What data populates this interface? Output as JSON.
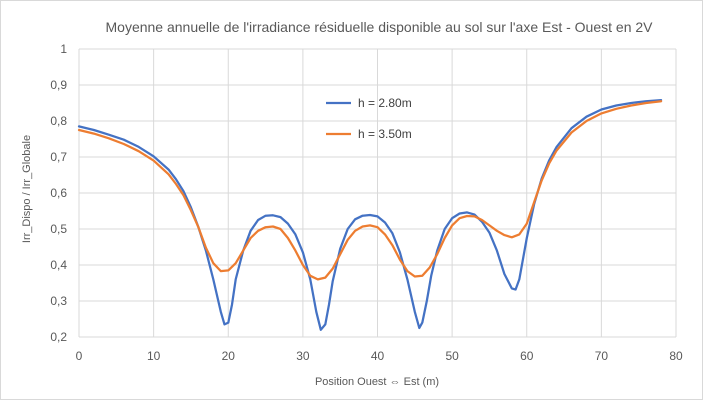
{
  "chart_data": {
    "type": "line",
    "title": "Moyenne annuelle de l'irradiance résiduelle disponible au sol sur l'axe Est - Ouest en 2V",
    "xlabel": "Position Ouest ⇔ Est (m)",
    "ylabel": "Irr_Dispo / Irr_Globale",
    "xlim": [
      0,
      80
    ],
    "ylim": [
      0.2,
      1.0
    ],
    "x_ticks": [
      "0",
      "10",
      "20",
      "30",
      "40",
      "50",
      "60",
      "70",
      "80"
    ],
    "y_ticks": [
      "0,2",
      "0,3",
      "0,4",
      "0,5",
      "0,6",
      "0,7",
      "0,8",
      "0,9",
      "1"
    ],
    "grid": true,
    "legend_position": "inside-top-center",
    "series": [
      {
        "name": "h = 2.80m",
        "color": "#4472c4",
        "points": [
          [
            0,
            0.785
          ],
          [
            2,
            0.775
          ],
          [
            4,
            0.762
          ],
          [
            6,
            0.748
          ],
          [
            8,
            0.728
          ],
          [
            10,
            0.702
          ],
          [
            12,
            0.665
          ],
          [
            13,
            0.638
          ],
          [
            14,
            0.605
          ],
          [
            15,
            0.56
          ],
          [
            16,
            0.505
          ],
          [
            17,
            0.44
          ],
          [
            18,
            0.36
          ],
          [
            19,
            0.27
          ],
          [
            19.5,
            0.235
          ],
          [
            20,
            0.24
          ],
          [
            20.5,
            0.29
          ],
          [
            21,
            0.36
          ],
          [
            22,
            0.44
          ],
          [
            23,
            0.495
          ],
          [
            24,
            0.525
          ],
          [
            25,
            0.537
          ],
          [
            26,
            0.538
          ],
          [
            27,
            0.533
          ],
          [
            28,
            0.515
          ],
          [
            29,
            0.485
          ],
          [
            30,
            0.435
          ],
          [
            31,
            0.36
          ],
          [
            31.8,
            0.27
          ],
          [
            32.4,
            0.22
          ],
          [
            33,
            0.235
          ],
          [
            33.5,
            0.29
          ],
          [
            34,
            0.355
          ],
          [
            35,
            0.445
          ],
          [
            36,
            0.5
          ],
          [
            37,
            0.527
          ],
          [
            38,
            0.537
          ],
          [
            39,
            0.539
          ],
          [
            40,
            0.535
          ],
          [
            41,
            0.518
          ],
          [
            42,
            0.488
          ],
          [
            43,
            0.435
          ],
          [
            44,
            0.36
          ],
          [
            45,
            0.27
          ],
          [
            45.6,
            0.225
          ],
          [
            46,
            0.24
          ],
          [
            46.6,
            0.3
          ],
          [
            47.2,
            0.37
          ],
          [
            48,
            0.44
          ],
          [
            49,
            0.5
          ],
          [
            50,
            0.53
          ],
          [
            51,
            0.543
          ],
          [
            52,
            0.546
          ],
          [
            53,
            0.54
          ],
          [
            54,
            0.52
          ],
          [
            55,
            0.49
          ],
          [
            56,
            0.44
          ],
          [
            57,
            0.375
          ],
          [
            58,
            0.335
          ],
          [
            58.5,
            0.332
          ],
          [
            59,
            0.36
          ],
          [
            60,
            0.475
          ],
          [
            61,
            0.57
          ],
          [
            62,
            0.64
          ],
          [
            63,
            0.69
          ],
          [
            64,
            0.728
          ],
          [
            66,
            0.78
          ],
          [
            68,
            0.812
          ],
          [
            70,
            0.832
          ],
          [
            72,
            0.843
          ],
          [
            74,
            0.85
          ],
          [
            76,
            0.855
          ],
          [
            78,
            0.858
          ]
        ]
      },
      {
        "name": "h = 3.50m",
        "color": "#ed7d31",
        "points": [
          [
            0,
            0.775
          ],
          [
            2,
            0.765
          ],
          [
            4,
            0.752
          ],
          [
            6,
            0.736
          ],
          [
            8,
            0.716
          ],
          [
            10,
            0.69
          ],
          [
            12,
            0.652
          ],
          [
            13,
            0.625
          ],
          [
            14,
            0.594
          ],
          [
            15,
            0.552
          ],
          [
            16,
            0.505
          ],
          [
            17,
            0.448
          ],
          [
            18,
            0.405
          ],
          [
            19,
            0.383
          ],
          [
            20,
            0.385
          ],
          [
            21,
            0.405
          ],
          [
            22,
            0.44
          ],
          [
            23,
            0.475
          ],
          [
            24,
            0.495
          ],
          [
            25,
            0.505
          ],
          [
            26,
            0.507
          ],
          [
            27,
            0.5
          ],
          [
            28,
            0.475
          ],
          [
            29,
            0.44
          ],
          [
            30,
            0.4
          ],
          [
            31,
            0.37
          ],
          [
            32,
            0.36
          ],
          [
            33,
            0.365
          ],
          [
            34,
            0.39
          ],
          [
            35,
            0.43
          ],
          [
            36,
            0.47
          ],
          [
            37,
            0.495
          ],
          [
            38,
            0.507
          ],
          [
            39,
            0.51
          ],
          [
            40,
            0.505
          ],
          [
            41,
            0.485
          ],
          [
            42,
            0.455
          ],
          [
            43,
            0.415
          ],
          [
            44,
            0.383
          ],
          [
            45,
            0.368
          ],
          [
            46,
            0.37
          ],
          [
            47,
            0.393
          ],
          [
            48,
            0.43
          ],
          [
            49,
            0.475
          ],
          [
            50,
            0.51
          ],
          [
            51,
            0.53
          ],
          [
            52,
            0.536
          ],
          [
            53,
            0.535
          ],
          [
            54,
            0.525
          ],
          [
            55,
            0.51
          ],
          [
            56,
            0.495
          ],
          [
            57,
            0.483
          ],
          [
            58,
            0.477
          ],
          [
            59,
            0.485
          ],
          [
            60,
            0.515
          ],
          [
            61,
            0.575
          ],
          [
            62,
            0.635
          ],
          [
            63,
            0.682
          ],
          [
            64,
            0.718
          ],
          [
            66,
            0.768
          ],
          [
            68,
            0.8
          ],
          [
            70,
            0.821
          ],
          [
            72,
            0.834
          ],
          [
            74,
            0.843
          ],
          [
            76,
            0.85
          ],
          [
            78,
            0.855
          ]
        ]
      }
    ]
  }
}
